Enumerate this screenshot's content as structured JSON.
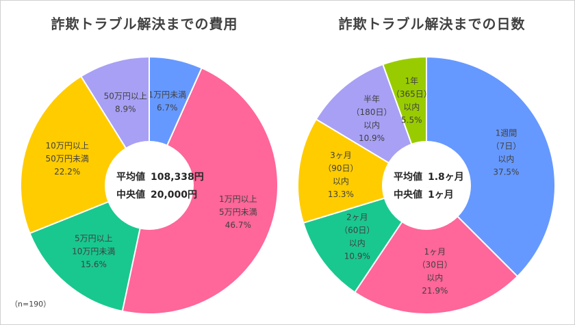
{
  "note": "（n=190）",
  "chart_data": [
    {
      "type": "pie",
      "title": "詐欺トラブル解決までの費用",
      "center_lines": [
        {
          "label": "平均値",
          "value": "108,338円"
        },
        {
          "label": "中央値",
          "value": "20,000円"
        }
      ],
      "slices": [
        {
          "label_lines": [
            "1万円未満",
            "6.7%"
          ],
          "value": 6.7,
          "color": "#6699ff"
        },
        {
          "label_lines": [
            "1万円以上",
            "5万円未満",
            "46.7%"
          ],
          "value": 46.7,
          "color": "#ff6699"
        },
        {
          "label_lines": [
            "5万円以上",
            "10万円未満",
            "15.6%"
          ],
          "value": 15.6,
          "color": "#19c88f"
        },
        {
          "label_lines": [
            "10万円以上",
            "50万円未満",
            "22.2%"
          ],
          "value": 22.2,
          "color": "#ffcc00"
        },
        {
          "label_lines": [
            "50万円以上",
            "8.9%"
          ],
          "value": 8.9,
          "color": "#a8a0f5"
        }
      ]
    },
    {
      "type": "pie",
      "title": "詐欺トラブル解決までの日数",
      "center_lines": [
        {
          "label": "平均値",
          "value": "1.8ヶ月"
        },
        {
          "label": "中央値",
          "value": "1ヶ月"
        }
      ],
      "slices": [
        {
          "label_lines": [
            "1週間",
            "（7日）",
            "以内",
            "37.5%"
          ],
          "value": 37.5,
          "color": "#6699ff"
        },
        {
          "label_lines": [
            "1ヶ月",
            "（30日）",
            "以内",
            "21.9%"
          ],
          "value": 21.9,
          "color": "#ff6699"
        },
        {
          "label_lines": [
            "2ヶ月",
            "（60日）",
            "以内",
            "10.9%"
          ],
          "value": 10.9,
          "color": "#19c88f"
        },
        {
          "label_lines": [
            "3ヶ月",
            "（90日）",
            "以内",
            "13.3%"
          ],
          "value": 13.3,
          "color": "#ffcc00"
        },
        {
          "label_lines": [
            "半年",
            "（180日）",
            "以内",
            "10.9%"
          ],
          "value": 10.9,
          "color": "#a8a0f5"
        },
        {
          "label_lines": [
            "1年",
            "（365日）",
            "以内",
            "5.5%"
          ],
          "value": 5.5,
          "color": "#99cc00"
        }
      ]
    }
  ]
}
